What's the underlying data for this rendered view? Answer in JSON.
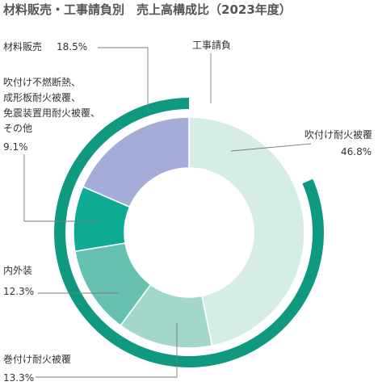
{
  "chart_data": {
    "type": "pie",
    "title": "材料販売・工事請負別　売上高構成比（2023年度）",
    "rings": [
      {
        "name": "outer",
        "slices": [
          {
            "label": "材料販売",
            "value": 18.5,
            "color": "#ffffff"
          },
          {
            "label": "工事請負",
            "value": 81.5,
            "color": "#0f9a80"
          }
        ]
      },
      {
        "name": "inner",
        "slices": [
          {
            "label": "吹付け耐火被覆",
            "value": 46.8,
            "color": "#d5ece7"
          },
          {
            "label": "巻付け耐火被覆",
            "value": 13.3,
            "color": "#a3d7cb"
          },
          {
            "label": "内外装",
            "value": 12.3,
            "color": "#66c1b0"
          },
          {
            "label": "吹付け不燃断熱、成形板耐火被覆、免震装置用耐火被覆、その他",
            "value": 9.1,
            "color": "#0faa94"
          },
          {
            "label": "材料販売",
            "value": 18.5,
            "color": "#a4acd8"
          }
        ]
      }
    ]
  },
  "labels": {
    "materials": {
      "name": "材料販売",
      "pct": "18.5%"
    },
    "construction": {
      "name": "工事請負"
    },
    "spray": {
      "name": "吹付け耐火被覆",
      "pct": "46.8%"
    },
    "others": {
      "line1": "吹付け不燃断熱、",
      "line2": "成形板耐火被覆、",
      "line3": "免震装置用耐火被覆、",
      "line4": "その他",
      "pct": "9.1%"
    },
    "interior": {
      "name": "内外装",
      "pct": "12.3%"
    },
    "wrap": {
      "name": "巻付け耐火被覆",
      "pct": "13.3%"
    }
  }
}
